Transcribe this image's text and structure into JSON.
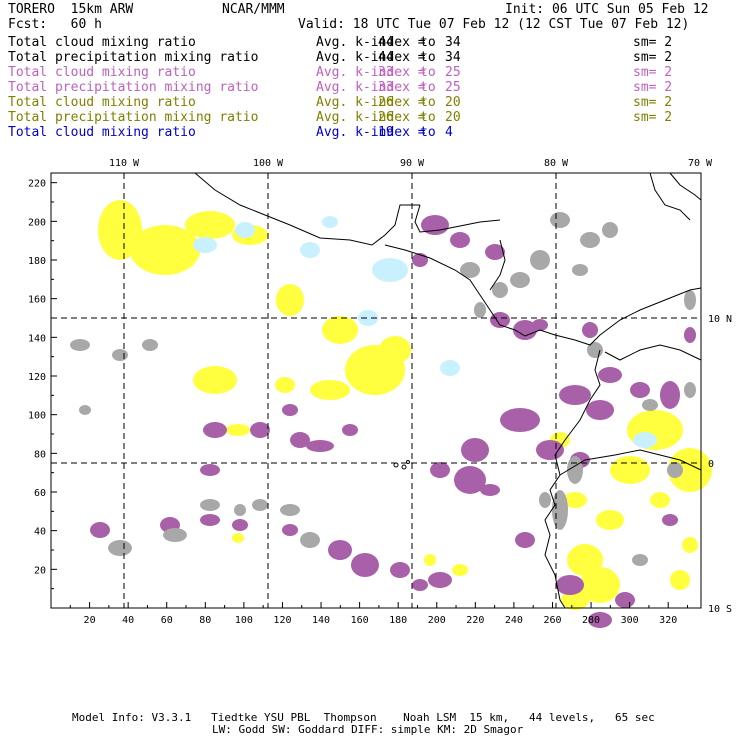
{
  "header": {
    "model": "TORERO  15km ARW",
    "org": "NCAR/MMM",
    "init": "Init: 06 UTC Sun 05 Feb 12",
    "fcst": "Fcst:   60 h",
    "valid": "Valid: 18 UTC Tue 07 Feb 12 (12 CST Tue 07 Feb 12)"
  },
  "legend": [
    {
      "field": "Total cloud mixing ratio",
      "kindex": "Avg. k-index =",
      "hi": "44",
      "to": "to",
      "lo": "34",
      "sm": "sm= 2",
      "color": "#000000"
    },
    {
      "field": "Total precipitation mixing ratio",
      "kindex": "Avg. k-index =",
      "hi": "44",
      "to": "to",
      "lo": "34",
      "sm": "sm= 2",
      "color": "#000000"
    },
    {
      "field": "Total cloud mixing ratio",
      "kindex": "Avg. k-index =",
      "hi": "33",
      "to": "to",
      "lo": "25",
      "sm": "sm= 2",
      "color": "#c060c0"
    },
    {
      "field": "Total precipitation mixing ratio",
      "kindex": "Avg. k-index =",
      "hi": "33",
      "to": "to",
      "lo": "25",
      "sm": "sm= 2",
      "color": "#c060c0"
    },
    {
      "field": "Total cloud mixing ratio",
      "kindex": "Avg. k-index =",
      "hi": "26",
      "to": "to",
      "lo": "20",
      "sm": "sm= 2",
      "color": "#808000"
    },
    {
      "field": "Total precipitation mixing ratio",
      "kindex": "Avg. k-index =",
      "hi": "26",
      "to": "to",
      "lo": "20",
      "sm": "sm= 2",
      "color": "#808000"
    },
    {
      "field": "Total cloud mixing ratio",
      "kindex": "Avg. k-index =",
      "hi": "19",
      "to": "to",
      "lo": "4",
      "sm": "",
      "color": "#0000d0"
    }
  ],
  "map": {
    "lon_labels": [
      "110 W",
      "100 W",
      "90 W",
      "80 W",
      "70 W"
    ],
    "lat_labels": [
      "10 N",
      "0",
      "10 S"
    ],
    "x_ticks": [
      "20",
      "40",
      "60",
      "80",
      "100",
      "120",
      "140",
      "160",
      "180",
      "200",
      "220",
      "240",
      "260",
      "280",
      "300",
      "320"
    ],
    "y_ticks": [
      "20",
      "40",
      "60",
      "80",
      "100",
      "120",
      "140",
      "160",
      "180",
      "200",
      "220"
    ],
    "colors": {
      "gray": "#a8a8a8",
      "purple": "#a860a8",
      "yellow": "#ffff40",
      "lightblue": "#c8f0ff",
      "coast": "#000000"
    }
  },
  "footer": {
    "line1": "Model Info: V3.3.1   Tiedtke YSU PBL  Thompson    Noah LSM  15 km,   44 levels,   65 sec",
    "line2": "LW: Godd SW: Goddard DIFF: simple KM: 2D Smagor"
  }
}
